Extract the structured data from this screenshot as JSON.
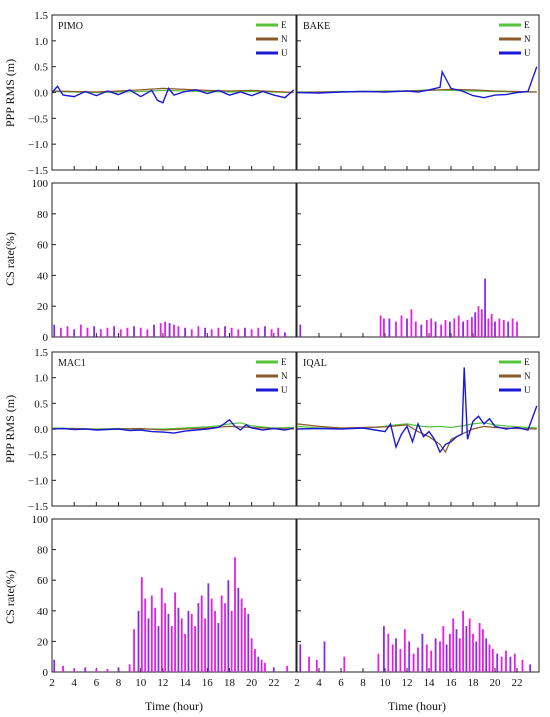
{
  "figure": {
    "ylabel_rms": "PPP RMS (m)",
    "ylabel_cs": "CS rate(%)",
    "xlabel": "Time (hour)"
  },
  "axes": {
    "x_ticks": [
      "2",
      "4",
      "6",
      "8",
      "10",
      "12",
      "14",
      "16",
      "18",
      "20",
      "22"
    ],
    "x_range": [
      2,
      24
    ],
    "rms_ticks": [
      "1.5",
      "1.0",
      "0.5",
      "0.0",
      "−0.5",
      "−1.0",
      "−1.5"
    ],
    "rms_range": [
      -1.5,
      1.5
    ],
    "cs_ticks": [
      "100",
      "80",
      "60",
      "40",
      "20",
      "0"
    ],
    "cs_range": [
      0,
      100
    ]
  },
  "legend": [
    "E",
    "N",
    "U"
  ],
  "colors": {
    "E": "#55c43a",
    "N": "#8b5a2b",
    "U": "#1a1ad6",
    "cs": "#e81ee8",
    "cs_dark": "#8a2be2"
  },
  "chart_data": [
    {
      "type": "line",
      "station": "PIMO",
      "ylabel": "PPP RMS (m)",
      "ylim": [
        -1.5,
        1.5
      ],
      "series": [
        {
          "name": "E",
          "x": [
            2,
            4,
            6,
            8,
            10,
            12,
            14,
            16,
            18,
            20,
            22,
            23.8
          ],
          "values": [
            0.02,
            0.01,
            0.0,
            0.01,
            0.02,
            0.04,
            0.03,
            0.02,
            0.01,
            0.02,
            0.01,
            0.0
          ]
        },
        {
          "name": "N",
          "x": [
            2,
            4,
            6,
            8,
            10,
            12,
            14,
            16,
            18,
            20,
            22,
            23.8
          ],
          "values": [
            0.03,
            0.02,
            0.01,
            0.03,
            0.05,
            0.08,
            0.06,
            0.04,
            0.03,
            0.04,
            0.02,
            0.0
          ]
        },
        {
          "name": "U",
          "x": [
            2,
            2.5,
            3,
            4,
            5,
            6,
            7,
            8,
            9,
            10,
            11,
            11.5,
            12,
            12.5,
            13,
            14,
            15,
            16,
            17,
            18,
            19,
            20,
            21,
            22,
            23,
            23.8
          ],
          "values": [
            0.0,
            0.12,
            -0.05,
            -0.08,
            0.02,
            -0.06,
            0.03,
            -0.04,
            0.05,
            -0.08,
            0.04,
            -0.15,
            -0.2,
            0.08,
            -0.05,
            0.02,
            0.05,
            -0.02,
            0.04,
            -0.05,
            0.01,
            -0.06,
            0.02,
            -0.05,
            -0.1,
            0.05
          ]
        }
      ]
    },
    {
      "type": "line",
      "station": "BAKE",
      "ylabel": "PPP RMS (m)",
      "ylim": [
        -1.5,
        1.5
      ],
      "series": [
        {
          "name": "E",
          "x": [
            2,
            4,
            6,
            8,
            10,
            12,
            14,
            16,
            18,
            20,
            22,
            23.8
          ],
          "values": [
            0.01,
            0.01,
            0.02,
            0.02,
            0.03,
            0.03,
            0.05,
            0.04,
            0.03,
            0.02,
            0.01,
            0.01
          ]
        },
        {
          "name": "N",
          "x": [
            2,
            4,
            6,
            8,
            10,
            12,
            14,
            16,
            18,
            20,
            22,
            23.8
          ],
          "values": [
            0.0,
            0.01,
            0.01,
            0.02,
            0.02,
            0.03,
            0.04,
            0.06,
            0.05,
            0.03,
            0.02,
            0.01
          ]
        },
        {
          "name": "U",
          "x": [
            2,
            4,
            6,
            8,
            10,
            12,
            13,
            14,
            15,
            15.2,
            16,
            17,
            18,
            19,
            20,
            21,
            22,
            23,
            23.8
          ],
          "values": [
            0.0,
            -0.01,
            0.01,
            0.02,
            0.01,
            0.03,
            0.01,
            0.05,
            0.1,
            0.4,
            0.08,
            0.03,
            -0.06,
            -0.1,
            -0.05,
            -0.04,
            0.0,
            0.02,
            0.5
          ]
        }
      ]
    },
    {
      "type": "bar",
      "station": "PIMO",
      "ylabel": "CS rate(%)",
      "ylim": [
        0,
        100
      ],
      "x": [
        2.2,
        2.8,
        3.4,
        4.0,
        4.6,
        5.2,
        5.8,
        6.4,
        7.0,
        7.6,
        8.2,
        8.8,
        9.4,
        10.0,
        10.6,
        11.2,
        11.8,
        12.2,
        12.6,
        13.0,
        13.4,
        14.0,
        14.6,
        15.2,
        15.8,
        16.4,
        17.0,
        17.6,
        18.2,
        18.8,
        19.4,
        20.0,
        20.6,
        21.2,
        21.8,
        22.4,
        23.0
      ],
      "values": [
        8,
        6,
        7,
        5,
        8,
        6,
        7,
        5,
        6,
        7,
        5,
        6,
        7,
        6,
        5,
        8,
        9,
        10,
        9,
        8,
        7,
        6,
        5,
        7,
        6,
        5,
        6,
        7,
        6,
        5,
        6,
        5,
        6,
        7,
        5,
        6,
        3
      ]
    },
    {
      "type": "bar",
      "station": "BAKE",
      "ylabel": "CS rate(%)",
      "ylim": [
        0,
        100
      ],
      "x": [
        2.3,
        9.6,
        9.9,
        10.4,
        11.0,
        11.5,
        12.0,
        12.4,
        12.8,
        13.3,
        13.8,
        14.2,
        14.6,
        15.1,
        15.5,
        15.9,
        16.3,
        16.7,
        17.1,
        17.5,
        17.9,
        18.2,
        18.5,
        18.8,
        19.1,
        19.4,
        19.7,
        20.0,
        20.4,
        20.8,
        21.2,
        21.6,
        22.0
      ],
      "values": [
        8,
        14,
        12,
        12,
        10,
        14,
        12,
        18,
        10,
        8,
        11,
        12,
        10,
        8,
        11,
        10,
        12,
        14,
        10,
        11,
        13,
        16,
        20,
        18,
        38,
        12,
        15,
        10,
        12,
        11,
        10,
        12,
        10
      ]
    },
    {
      "type": "line",
      "station": "MAC1",
      "ylabel": "PPP RMS (m)",
      "ylim": [
        -1.5,
        1.5
      ],
      "series": [
        {
          "name": "E",
          "x": [
            2,
            4,
            6,
            8,
            10,
            12,
            14,
            16,
            17,
            18,
            19,
            20,
            22,
            23.8
          ],
          "values": [
            0.02,
            0.01,
            0.0,
            0.01,
            0.0,
            0.0,
            0.02,
            0.04,
            0.06,
            0.1,
            0.12,
            0.06,
            0.02,
            0.03
          ]
        },
        {
          "name": "N",
          "x": [
            2,
            4,
            6,
            8,
            10,
            12,
            14,
            16,
            18,
            20,
            22,
            23.8
          ],
          "values": [
            0.0,
            0.01,
            -0.01,
            0.0,
            0.01,
            -0.02,
            0.0,
            0.02,
            0.05,
            0.03,
            0.01,
            0.0
          ]
        },
        {
          "name": "U",
          "x": [
            2,
            3,
            4,
            5,
            6,
            7,
            8,
            9,
            10,
            11,
            12,
            13,
            14,
            15,
            16,
            17,
            17.5,
            18,
            18.5,
            19,
            19.5,
            20,
            21,
            22,
            23,
            23.8
          ],
          "values": [
            0.0,
            0.01,
            -0.01,
            0.0,
            -0.02,
            -0.01,
            0.0,
            -0.03,
            -0.02,
            -0.05,
            -0.06,
            -0.08,
            -0.04,
            -0.02,
            0.0,
            0.03,
            0.1,
            0.18,
            0.05,
            -0.02,
            0.08,
            0.02,
            -0.02,
            0.01,
            -0.02,
            0.02
          ]
        }
      ]
    },
    {
      "type": "line",
      "station": "IQAL",
      "ylabel": "PPP RMS (m)",
      "ylim": [
        -1.5,
        1.5
      ],
      "series": [
        {
          "name": "E",
          "x": [
            2,
            4,
            6,
            8,
            10,
            11,
            12,
            13,
            14,
            15,
            16,
            17,
            18,
            19,
            20,
            22,
            23.8
          ],
          "values": [
            0.05,
            0.02,
            0.01,
            0.02,
            0.05,
            0.08,
            0.1,
            0.06,
            0.04,
            0.05,
            0.03,
            0.06,
            0.1,
            0.12,
            0.08,
            0.04,
            0.02
          ]
        },
        {
          "name": "N",
          "x": [
            2,
            4,
            6,
            8,
            10,
            11,
            12,
            13,
            14,
            15,
            15.5,
            16,
            17,
            18,
            19,
            20,
            22,
            23.8
          ],
          "values": [
            0.1,
            0.05,
            0.02,
            0.03,
            0.04,
            0.06,
            0.08,
            -0.05,
            -0.15,
            -0.3,
            -0.45,
            -0.2,
            -0.1,
            0.0,
            0.05,
            0.03,
            0.01,
            0.0
          ]
        },
        {
          "name": "U",
          "x": [
            2,
            4,
            6,
            8,
            10,
            10.5,
            11,
            11.5,
            12,
            12.5,
            13,
            13.5,
            14,
            14.5,
            15,
            15.5,
            16,
            16.5,
            17,
            17.2,
            17.5,
            18,
            18.5,
            19,
            19.5,
            20,
            21,
            22,
            23,
            23.8
          ],
          "values": [
            0.0,
            0.01,
            0.0,
            0.02,
            -0.05,
            0.1,
            -0.35,
            -0.1,
            0.05,
            -0.25,
            0.1,
            -0.15,
            -0.05,
            -0.2,
            -0.45,
            -0.3,
            -0.25,
            -0.15,
            -0.1,
            1.2,
            -0.2,
            0.15,
            0.25,
            0.1,
            0.2,
            0.05,
            0.0,
            0.03,
            -0.02,
            0.45
          ]
        }
      ]
    },
    {
      "type": "bar",
      "station": "MAC1",
      "ylabel": "CS rate(%)",
      "ylim": [
        0,
        100
      ],
      "x": [
        2.2,
        3.0,
        4.0,
        5.0,
        6.0,
        7.0,
        8.0,
        9.0,
        9.4,
        9.8,
        10.1,
        10.4,
        10.7,
        11.0,
        11.3,
        11.6,
        11.9,
        12.2,
        12.5,
        12.8,
        13.1,
        13.4,
        13.7,
        14.0,
        14.3,
        14.6,
        14.9,
        15.2,
        15.5,
        15.8,
        16.1,
        16.4,
        16.7,
        17.0,
        17.3,
        17.6,
        17.9,
        18.2,
        18.5,
        18.8,
        19.1,
        19.4,
        19.7,
        20.0,
        20.3,
        20.6,
        20.9,
        21.2,
        22.0,
        23.2
      ],
      "values": [
        8,
        4,
        2,
        3,
        2,
        2,
        3,
        5,
        28,
        40,
        62,
        48,
        35,
        50,
        42,
        30,
        55,
        45,
        38,
        30,
        52,
        42,
        35,
        25,
        40,
        38,
        30,
        45,
        50,
        35,
        58,
        48,
        40,
        32,
        50,
        45,
        60,
        40,
        75,
        55,
        48,
        42,
        38,
        22,
        15,
        10,
        8,
        6,
        3,
        4
      ]
    },
    {
      "type": "bar",
      "station": "IQAL",
      "ylabel": "CS rate(%)",
      "ylim": [
        0,
        100
      ],
      "x": [
        2.3,
        3.1,
        3.8,
        4.5,
        6.3,
        9.4,
        9.9,
        10.3,
        10.7,
        11.0,
        11.4,
        11.8,
        12.2,
        12.6,
        13.0,
        13.4,
        13.8,
        14.2,
        14.6,
        15.0,
        15.3,
        15.6,
        15.9,
        16.2,
        16.5,
        16.8,
        17.1,
        17.4,
        17.7,
        18.0,
        18.3,
        18.6,
        18.9,
        19.2,
        19.5,
        19.8,
        20.2,
        20.6,
        21.0,
        21.4,
        21.8,
        22.5,
        23.2
      ],
      "values": [
        18,
        10,
        8,
        20,
        10,
        12,
        30,
        25,
        18,
        22,
        15,
        28,
        20,
        12,
        16,
        25,
        18,
        14,
        22,
        20,
        30,
        18,
        25,
        35,
        28,
        22,
        40,
        30,
        35,
        25,
        20,
        32,
        28,
        22,
        18,
        15,
        12,
        10,
        14,
        10,
        12,
        8,
        5
      ]
    }
  ]
}
